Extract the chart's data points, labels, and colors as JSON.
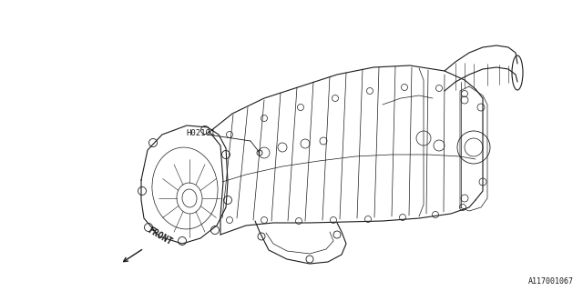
{
  "bg_color": "#ffffff",
  "line_color": "#1a1a1a",
  "label_h02101": "H02101",
  "label_front": "FRONT",
  "part_number": "A117001067",
  "fig_width": 6.4,
  "fig_height": 3.2,
  "dpi": 100
}
